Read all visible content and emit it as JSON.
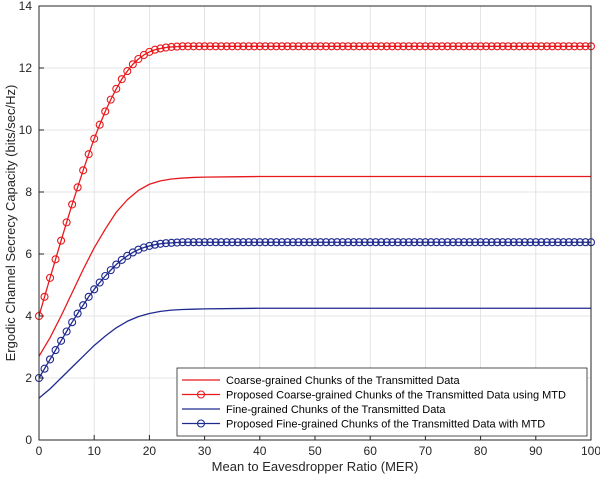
{
  "chart_data": {
    "type": "line",
    "title": "",
    "xlabel": "Mean to Eavesdropper Ratio (MER)",
    "ylabel": "Ergodic Channel Secrecy Capacity (bits/sec/Hz)",
    "xlim": [
      0,
      100
    ],
    "ylim": [
      0,
      14
    ],
    "xticks": [
      "0",
      "10",
      "20",
      "30",
      "40",
      "50",
      "60",
      "70",
      "80",
      "90",
      "100"
    ],
    "yticks": [
      "0",
      "2",
      "4",
      "6",
      "8",
      "10",
      "12",
      "14"
    ],
    "grid": true,
    "legend_position": "bottom-right",
    "series": [
      {
        "name": "Coarse-grained Chunks of the Transmitted Data",
        "color": "#e8191d",
        "marker": "none",
        "x": [
          0,
          2,
          4,
          6,
          8,
          10,
          12,
          14,
          16,
          18,
          20,
          22,
          24,
          26,
          28,
          30,
          35,
          40,
          50,
          60,
          70,
          80,
          90,
          100
        ],
        "y": [
          2.7,
          3.3,
          4.0,
          4.75,
          5.5,
          6.2,
          6.8,
          7.35,
          7.75,
          8.05,
          8.25,
          8.36,
          8.42,
          8.45,
          8.47,
          8.48,
          8.49,
          8.5,
          8.5,
          8.5,
          8.5,
          8.5,
          8.5,
          8.5
        ]
      },
      {
        "name": "Proposed Coarse-grained Chunks of the Transmitted Data using MTD",
        "color": "#e8191d",
        "marker": "circle",
        "x": [
          0,
          1,
          2,
          3,
          4,
          5,
          6,
          7,
          8,
          9,
          10,
          11,
          12,
          13,
          14,
          15,
          16,
          17,
          18,
          19,
          20,
          21,
          22,
          23,
          24,
          25,
          26,
          27,
          28,
          29,
          30,
          31,
          32,
          33,
          34,
          35,
          36,
          37,
          38,
          39,
          40,
          41,
          42,
          43,
          44,
          45,
          46,
          47,
          48,
          49,
          50,
          51,
          52,
          53,
          54,
          55,
          56,
          57,
          58,
          59,
          60,
          61,
          62,
          63,
          64,
          65,
          66,
          67,
          68,
          69,
          70,
          71,
          72,
          73,
          74,
          75,
          76,
          77,
          78,
          79,
          80,
          81,
          82,
          83,
          84,
          85,
          86,
          87,
          88,
          89,
          90,
          91,
          92,
          93,
          94,
          95,
          96,
          97,
          98,
          99,
          100
        ],
        "y": [
          4.0,
          4.62,
          5.23,
          5.83,
          6.43,
          7.02,
          7.6,
          8.15,
          8.7,
          9.22,
          9.72,
          10.17,
          10.6,
          10.98,
          11.33,
          11.64,
          11.9,
          12.12,
          12.29,
          12.42,
          12.52,
          12.59,
          12.63,
          12.66,
          12.68,
          12.69,
          12.7,
          12.7,
          12.7,
          12.7,
          12.7,
          12.7,
          12.7,
          12.7,
          12.7,
          12.7,
          12.7,
          12.7,
          12.7,
          12.7,
          12.7,
          12.7,
          12.7,
          12.7,
          12.7,
          12.7,
          12.7,
          12.7,
          12.7,
          12.7,
          12.7,
          12.7,
          12.7,
          12.7,
          12.7,
          12.7,
          12.7,
          12.7,
          12.7,
          12.7,
          12.7,
          12.7,
          12.7,
          12.7,
          12.7,
          12.7,
          12.7,
          12.7,
          12.7,
          12.7,
          12.7,
          12.7,
          12.7,
          12.7,
          12.7,
          12.7,
          12.7,
          12.7,
          12.7,
          12.7,
          12.7,
          12.7,
          12.7,
          12.7,
          12.7,
          12.7,
          12.7,
          12.7,
          12.7,
          12.7,
          12.7,
          12.7,
          12.7,
          12.7,
          12.7,
          12.7,
          12.7,
          12.7,
          12.7,
          12.7,
          12.7
        ]
      },
      {
        "name": "Fine-grained Chunks of the Transmitted Data",
        "color": "#1f2a8f",
        "marker": "none",
        "x": [
          0,
          2,
          4,
          6,
          8,
          10,
          12,
          14,
          16,
          18,
          20,
          22,
          24,
          26,
          28,
          30,
          35,
          40,
          50,
          60,
          70,
          80,
          90,
          100
        ],
        "y": [
          1.35,
          1.65,
          2.0,
          2.35,
          2.7,
          3.05,
          3.35,
          3.62,
          3.83,
          3.98,
          4.08,
          4.15,
          4.19,
          4.21,
          4.22,
          4.23,
          4.24,
          4.25,
          4.25,
          4.25,
          4.25,
          4.25,
          4.25,
          4.25
        ]
      },
      {
        "name": "Proposed Fine-grained Chunks of the Transmitted Data with MTD",
        "color": "#1f2a8f",
        "marker": "circle",
        "x": [
          0,
          1,
          2,
          3,
          4,
          5,
          6,
          7,
          8,
          9,
          10,
          11,
          12,
          13,
          14,
          15,
          16,
          17,
          18,
          19,
          20,
          21,
          22,
          23,
          24,
          25,
          26,
          27,
          28,
          29,
          30,
          31,
          32,
          33,
          34,
          35,
          36,
          37,
          38,
          39,
          40,
          41,
          42,
          43,
          44,
          45,
          46,
          47,
          48,
          49,
          50,
          51,
          52,
          53,
          54,
          55,
          56,
          57,
          58,
          59,
          60,
          61,
          62,
          63,
          64,
          65,
          66,
          67,
          68,
          69,
          70,
          71,
          72,
          73,
          74,
          75,
          76,
          77,
          78,
          79,
          80,
          81,
          82,
          83,
          84,
          85,
          86,
          87,
          88,
          89,
          90,
          91,
          92,
          93,
          94,
          95,
          96,
          97,
          98,
          99,
          100
        ],
        "y": [
          2.0,
          2.3,
          2.6,
          2.9,
          3.2,
          3.5,
          3.8,
          4.08,
          4.35,
          4.62,
          4.86,
          5.08,
          5.29,
          5.48,
          5.66,
          5.81,
          5.94,
          6.05,
          6.14,
          6.21,
          6.26,
          6.3,
          6.33,
          6.35,
          6.36,
          6.37,
          6.38,
          6.38,
          6.38,
          6.38,
          6.38,
          6.38,
          6.38,
          6.38,
          6.38,
          6.38,
          6.38,
          6.38,
          6.38,
          6.38,
          6.38,
          6.38,
          6.38,
          6.38,
          6.38,
          6.38,
          6.38,
          6.38,
          6.38,
          6.38,
          6.38,
          6.38,
          6.38,
          6.38,
          6.38,
          6.38,
          6.38,
          6.38,
          6.38,
          6.38,
          6.38,
          6.38,
          6.38,
          6.38,
          6.38,
          6.38,
          6.38,
          6.38,
          6.38,
          6.38,
          6.38,
          6.38,
          6.38,
          6.38,
          6.38,
          6.38,
          6.38,
          6.38,
          6.38,
          6.38,
          6.38,
          6.38,
          6.38,
          6.38,
          6.38,
          6.38,
          6.38,
          6.38,
          6.38,
          6.38,
          6.38,
          6.38,
          6.38,
          6.38,
          6.38,
          6.38,
          6.38,
          6.38,
          6.38,
          6.38,
          6.38
        ]
      }
    ]
  }
}
